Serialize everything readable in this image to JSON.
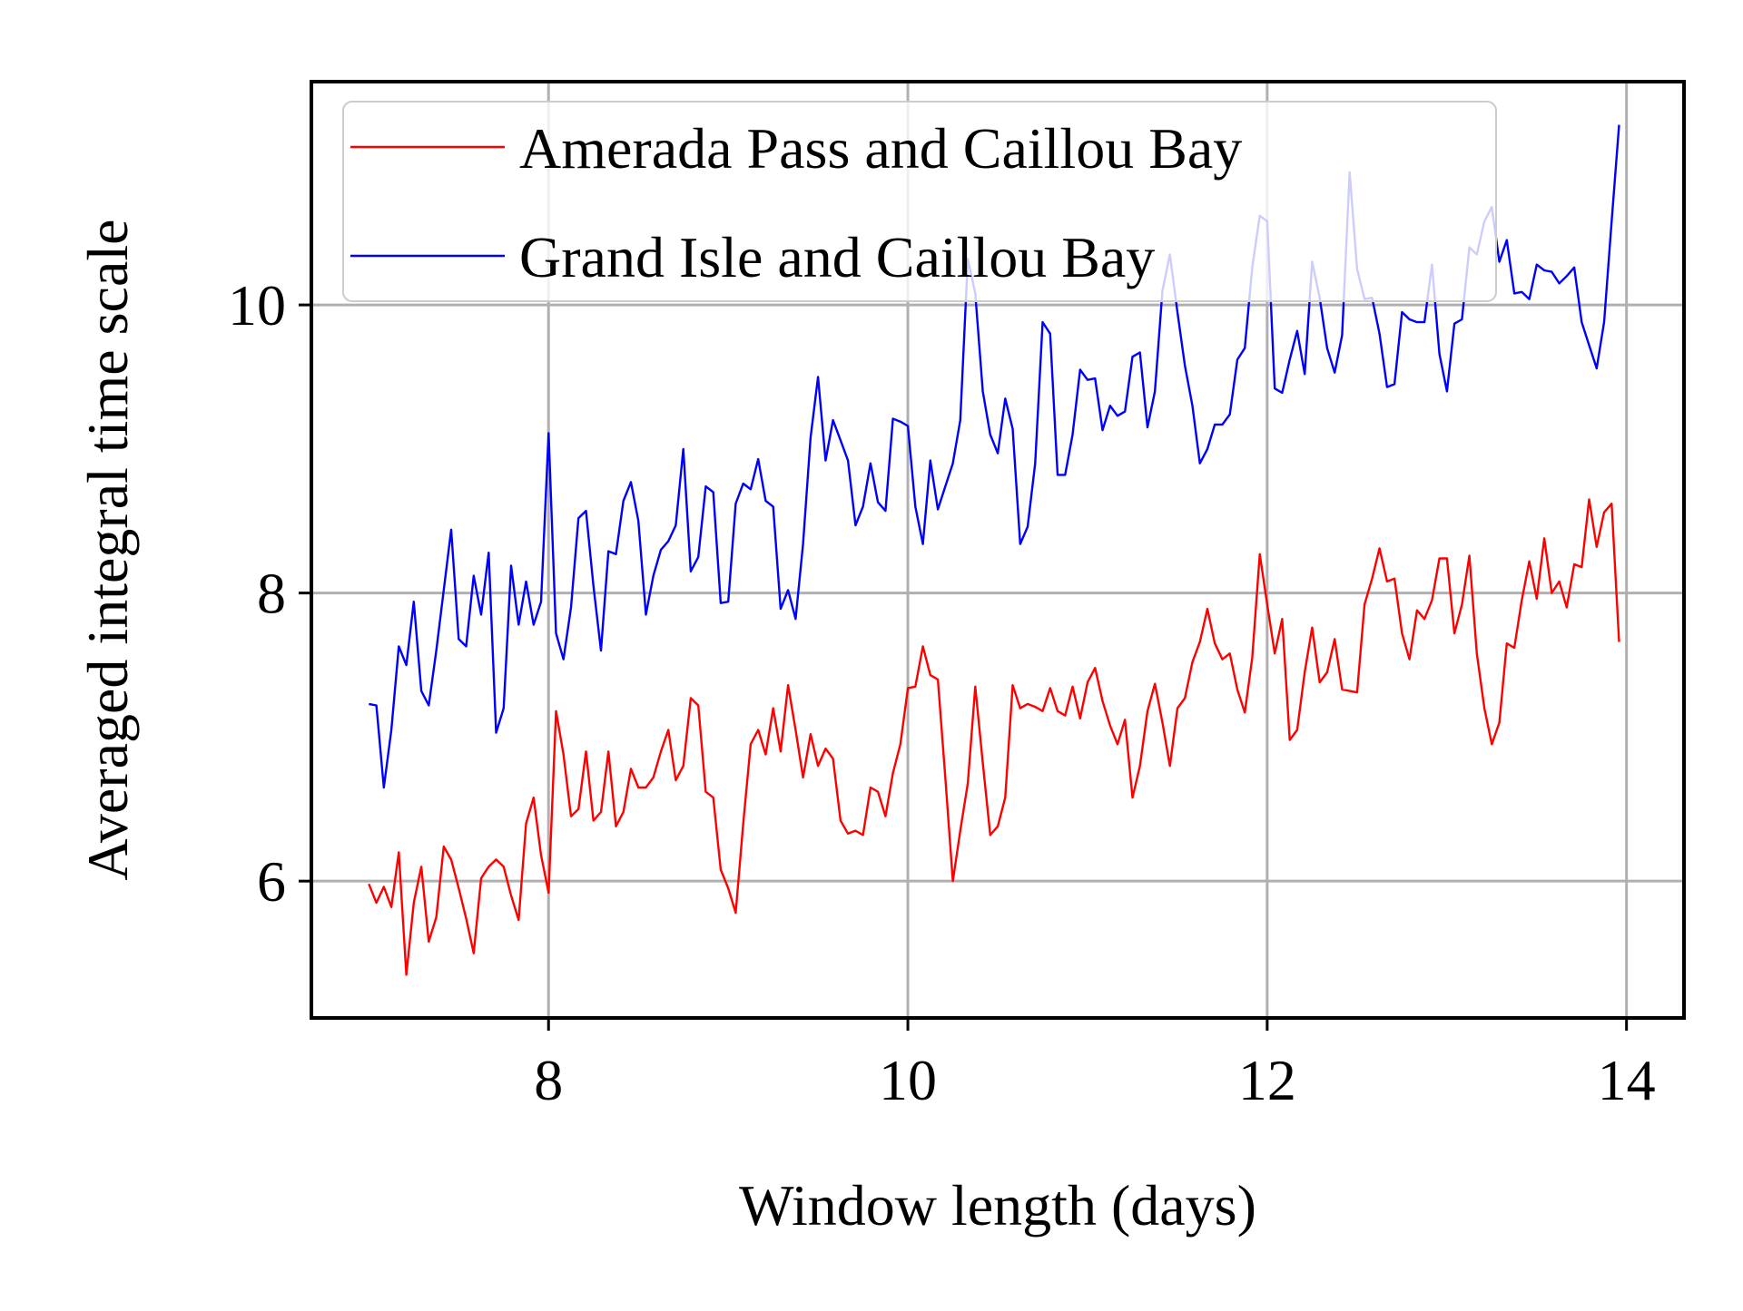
{
  "chart_data": {
    "type": "line",
    "title": "",
    "xlabel": "Window length (days)",
    "ylabel": "Averaged integral time scale",
    "xlim": [
      6.68,
      14.32
    ],
    "ylim": [
      5.05,
      11.55
    ],
    "xticks": [
      8,
      10,
      12,
      14
    ],
    "yticks": [
      6,
      8,
      10
    ],
    "xtick_labels": [
      "8",
      "10",
      "12",
      "14"
    ],
    "ytick_labels": [
      "6",
      "8",
      "10"
    ],
    "grid": true,
    "legend_position": "top-left",
    "x_start": 7.0,
    "x_step": 0.04167,
    "series": [
      {
        "name": "Amerada Pass and Caillou Bay",
        "color": "#ff0000",
        "values": [
          5.98,
          5.85,
          5.96,
          5.82,
          6.2,
          5.35,
          5.85,
          6.1,
          5.58,
          5.75,
          6.24,
          6.15,
          5.95,
          5.74,
          5.5,
          6.02,
          6.1,
          6.15,
          6.1,
          5.9,
          5.73,
          6.4,
          6.58,
          6.18,
          5.92,
          7.18,
          6.88,
          6.45,
          6.5,
          6.9,
          6.42,
          6.48,
          6.9,
          6.38,
          6.48,
          6.78,
          6.65,
          6.65,
          6.72,
          6.9,
          7.05,
          6.7,
          6.8,
          7.27,
          7.22,
          6.62,
          6.58,
          6.08,
          5.95,
          5.78,
          6.4,
          6.95,
          7.05,
          6.88,
          7.2,
          6.9,
          7.36,
          7.05,
          6.72,
          7.02,
          6.8,
          6.92,
          6.85,
          6.42,
          6.33,
          6.35,
          6.32,
          6.65,
          6.62,
          6.45,
          6.75,
          6.95,
          7.34,
          7.35,
          7.63,
          7.43,
          7.4,
          6.72,
          6.0,
          6.35,
          6.68,
          7.35,
          6.82,
          6.32,
          6.38,
          6.58,
          7.36,
          7.2,
          7.23,
          7.21,
          7.18,
          7.34,
          7.18,
          7.15,
          7.35,
          7.13,
          7.38,
          7.48,
          7.25,
          7.08,
          6.95,
          7.12,
          6.58,
          6.8,
          7.18,
          7.37,
          7.1,
          6.8,
          7.2,
          7.27,
          7.52,
          7.66,
          7.89,
          7.65,
          7.54,
          7.58,
          7.33,
          7.17,
          7.55,
          8.27,
          7.92,
          7.58,
          7.82,
          6.98,
          7.05,
          7.45,
          7.76,
          7.38,
          7.45,
          7.68,
          7.33,
          7.32,
          7.31,
          7.92,
          8.1,
          8.31,
          8.08,
          8.1,
          7.72,
          7.54,
          7.88,
          7.82,
          7.95,
          8.24,
          8.24,
          7.72,
          7.92,
          8.26,
          7.58,
          7.2,
          6.95,
          7.1,
          7.65,
          7.62,
          7.95,
          8.22,
          7.96,
          8.38,
          8.0,
          8.08,
          7.9,
          8.2,
          8.18,
          8.65,
          8.32,
          8.56,
          8.62,
          7.66
        ]
      },
      {
        "name": "Grand Isle and Caillou Bay",
        "color": "#0000ff",
        "values": [
          7.23,
          7.22,
          6.65,
          7.05,
          7.63,
          7.5,
          7.94,
          7.32,
          7.22,
          7.6,
          8.02,
          8.44,
          7.68,
          7.63,
          8.12,
          7.85,
          8.28,
          7.03,
          7.2,
          8.19,
          7.78,
          8.08,
          7.78,
          7.94,
          9.11,
          7.72,
          7.54,
          7.9,
          8.52,
          8.57,
          8.05,
          7.6,
          8.29,
          8.27,
          8.64,
          8.77,
          8.5,
          7.85,
          8.12,
          8.3,
          8.36,
          8.47,
          9.0,
          8.15,
          8.25,
          8.74,
          8.7,
          7.93,
          7.94,
          8.62,
          8.76,
          8.72,
          8.93,
          8.64,
          8.6,
          7.89,
          8.02,
          7.82,
          8.34,
          9.08,
          9.5,
          8.92,
          9.2,
          9.06,
          8.92,
          8.47,
          8.6,
          8.9,
          8.63,
          8.57,
          9.21,
          9.19,
          9.16,
          8.6,
          8.34,
          8.92,
          8.58,
          8.74,
          8.9,
          9.2,
          10.32,
          10.08,
          9.4,
          9.1,
          8.97,
          9.35,
          9.14,
          8.34,
          8.46,
          8.9,
          9.88,
          9.8,
          8.82,
          8.82,
          9.1,
          9.55,
          9.48,
          9.49,
          9.13,
          9.3,
          9.23,
          9.26,
          9.64,
          9.67,
          9.15,
          9.4,
          10.1,
          10.35,
          9.95,
          9.58,
          9.3,
          8.9,
          9.0,
          9.17,
          9.17,
          9.24,
          9.62,
          9.7,
          10.26,
          10.62,
          10.58,
          9.42,
          9.39,
          9.62,
          9.82,
          9.52,
          10.3,
          10.05,
          9.7,
          9.53,
          9.79,
          10.92,
          10.25,
          10.04,
          10.05,
          9.8,
          9.43,
          9.45,
          9.95,
          9.9,
          9.88,
          9.88,
          10.28,
          9.66,
          9.4,
          9.87,
          9.9,
          10.4,
          10.35,
          10.58,
          10.68,
          10.3,
          10.45,
          10.08,
          10.09,
          10.04,
          10.28,
          10.24,
          10.23,
          10.15,
          10.2,
          10.26,
          9.88,
          9.72,
          9.56,
          9.88,
          10.58,
          11.25
        ]
      }
    ]
  }
}
